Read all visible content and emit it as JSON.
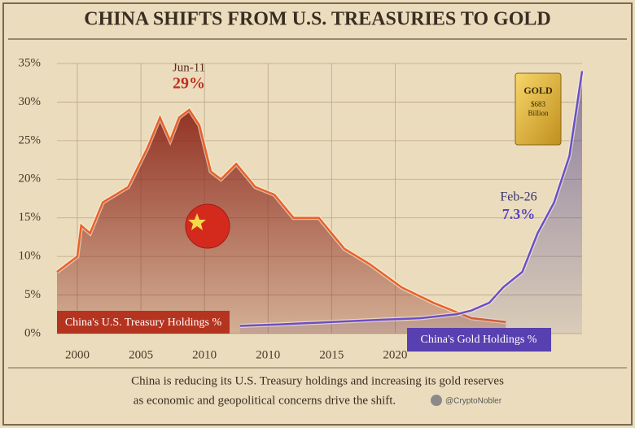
{
  "chart_data": {
    "type": "line",
    "title": "CHINA SHIFTS FROM U.S. TREASURIES TO GOLD",
    "caption": [
      "China is reducing its U.S. Treasury holdings and increasing its gold reserves",
      "as economic and geopolitical concerns drive the shift."
    ],
    "credit": "@CryptoNobler",
    "annotations": [
      {
        "label": "Jun-11",
        "value_text": "29%"
      },
      {
        "label": "Feb-26",
        "value_text": "7.3%"
      }
    ],
    "gold_badge": [
      "GOLD",
      "$683",
      "Billion"
    ],
    "xlim": [
      1998.4,
      2039.7
    ],
    "xticks": [
      2000,
      2005,
      2010,
      {
        "value": 2015,
        "label": "2010"
      },
      {
        "value": 2020,
        "label": "2015"
      },
      {
        "value": 2025,
        "label": "2020"
      }
    ],
    "ylim": [
      0,
      35
    ],
    "yticks": [
      {
        "value": 0,
        "label": "0%"
      },
      {
        "value": 5,
        "label": "5%"
      },
      {
        "value": 10,
        "label": "10%"
      },
      {
        "value": 15,
        "label": "15%"
      },
      {
        "value": 20,
        "label": "20%"
      },
      {
        "value": 25,
        "label": "25%"
      },
      {
        "value": 30,
        "label": "30%"
      },
      {
        "value": 35,
        "label": "35%"
      }
    ],
    "grid": true,
    "series": [
      {
        "name": "China's U.S. Treasury Holdings %",
        "color": "#e8622a",
        "fill": "#8e2a1c",
        "x": [
          1998.4,
          2000,
          2000.3,
          2001,
          2002,
          2003,
          2004,
          2005.5,
          2006.5,
          2007.3,
          2008,
          2008.8,
          2009.6,
          2010.5,
          2011.3,
          2012.5,
          2014,
          2015.5,
          2017,
          2019,
          2021,
          2023,
          2025.5,
          2028,
          2031,
          2033.7
        ],
        "values": [
          8,
          10,
          14,
          13,
          17,
          18,
          19,
          24,
          28,
          25,
          28,
          29,
          27,
          21,
          20,
          22,
          19,
          18,
          15,
          15,
          11,
          9,
          6,
          4,
          2,
          1.5
        ]
      },
      {
        "name": "China's Gold Holdings %",
        "color": "#6a4fc9",
        "fill": "#4a3d8a",
        "x": [
          2012.8,
          2016,
          2020,
          2024,
          2027,
          2029.8,
          2031,
          2032.4,
          2033.5,
          2035,
          2036.2,
          2037.5,
          2038.7,
          2039.7
        ],
        "values": [
          1,
          1.2,
          1.5,
          1.8,
          2,
          2.5,
          3,
          4,
          6,
          8,
          13,
          17,
          23,
          34
        ]
      }
    ]
  }
}
